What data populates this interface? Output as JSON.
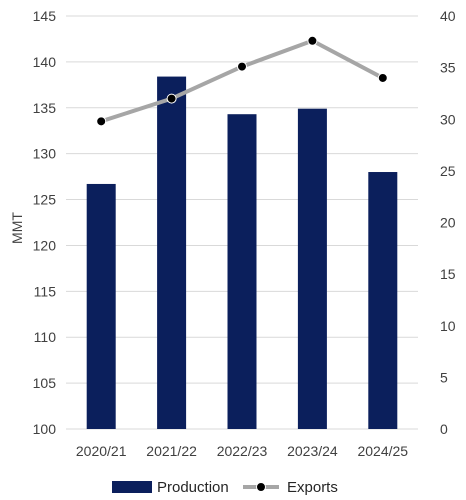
{
  "chart_data": {
    "type": "bar",
    "categories": [
      "2020/21",
      "2021/22",
      "2022/23",
      "2023/24",
      "2024/25"
    ],
    "series": [
      {
        "name": "Production",
        "type": "bar",
        "axis": "left",
        "values": [
          126.7,
          138.4,
          134.3,
          134.9,
          128.0
        ]
      },
      {
        "name": "Exports",
        "type": "line",
        "axis": "right",
        "values": [
          29.8,
          32.0,
          35.1,
          37.6,
          34.0
        ]
      }
    ],
    "ylabel": "MMT",
    "ylim": [
      100,
      145
    ],
    "y_ticks": [
      "100",
      "105",
      "110",
      "115",
      "120",
      "125",
      "130",
      "135",
      "140",
      "145"
    ],
    "y2lim": [
      0,
      40
    ],
    "y2_ticks": [
      "0",
      "5",
      "10",
      "15",
      "20",
      "25",
      "30",
      "35",
      "40"
    ],
    "grid": true,
    "legend_position": "bottom",
    "colors": {
      "Production": "#0b1f5c",
      "Exports": "#a6a6a6",
      "marker": "#000000",
      "grid": "#d9d9d9"
    }
  }
}
